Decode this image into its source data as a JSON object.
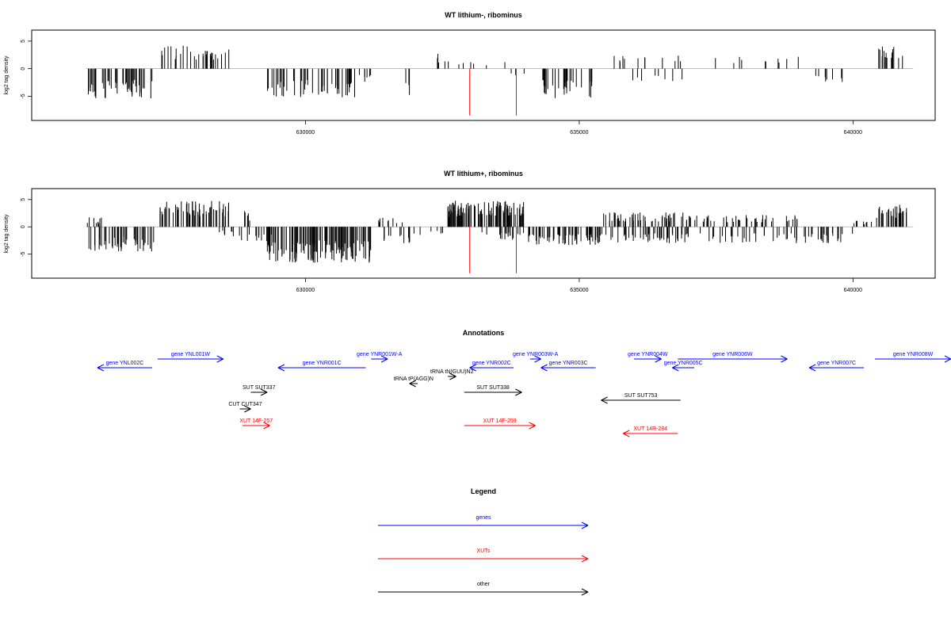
{
  "colors": {
    "gene": "#0000ff",
    "xut": "#ff0000",
    "other": "#000000",
    "highlight": "#ff0000"
  },
  "chart_data": [
    {
      "type": "bar",
      "title": "WT lithium-, ribominus",
      "ylabel": "log2 tag density",
      "xlim": [
        625000,
        641500
      ],
      "ylim": [
        -9.4,
        7.0
      ],
      "xticks": [
        {
          "value": 630000,
          "label": "630000"
        },
        {
          "value": 635000,
          "label": "635000"
        },
        {
          "value": 640000,
          "label": "640000"
        }
      ],
      "yticks": [
        {
          "value": 5,
          "label": "5"
        },
        {
          "value": 0,
          "label": "0"
        },
        {
          "value": -5,
          "label": "-5"
        }
      ],
      "highlight_positions": [
        633000,
        633850
      ],
      "highlight_value": -8.5,
      "series": [
        {
          "x": [
            626000,
            627200
          ],
          "y": -4.5,
          "density": 48
        },
        {
          "x": [
            627300,
            628600
          ],
          "y": 3.5,
          "density": 32
        },
        {
          "x": [
            629300,
            630900
          ],
          "y": -4.5,
          "density": 52
        },
        {
          "x": [
            630900,
            631200
          ],
          "y": -2.5,
          "density": 6
        },
        {
          "x": [
            631800,
            631900
          ],
          "y": -4.0,
          "density": 3
        },
        {
          "x": [
            632400,
            632700
          ],
          "y": 2.5,
          "density": 5
        },
        {
          "x": [
            632800,
            633700
          ],
          "y": 1.0,
          "density": 6
        },
        {
          "x": [
            633600,
            634000
          ],
          "y": -1.0,
          "density": 3
        },
        {
          "x": [
            634300,
            635300
          ],
          "y": -4.5,
          "density": 30
        },
        {
          "x": [
            635500,
            636900
          ],
          "y": 2.0,
          "density": 12
        },
        {
          "x": [
            635900,
            636900
          ],
          "y": -2.0,
          "density": 8
        },
        {
          "x": [
            637300,
            639000
          ],
          "y": 1.8,
          "density": 10
        },
        {
          "x": [
            639300,
            640200
          ],
          "y": -2.2,
          "density": 8
        },
        {
          "x": [
            640450,
            641000
          ],
          "y": 3.5,
          "density": 14
        }
      ]
    },
    {
      "type": "bar",
      "title": "WT lithium+, ribominus",
      "ylabel": "log2 tag density",
      "xlim": [
        625000,
        641500
      ],
      "ylim": [
        -9.4,
        7.0
      ],
      "xticks": [
        {
          "value": 630000,
          "label": "630000"
        },
        {
          "value": 635000,
          "label": "635000"
        },
        {
          "value": 640000,
          "label": "640000"
        }
      ],
      "yticks": [
        {
          "value": 5,
          "label": "5"
        },
        {
          "value": 0,
          "label": "0"
        },
        {
          "value": -5,
          "label": "-5"
        }
      ],
      "highlight_positions": [
        633000,
        633850
      ],
      "highlight_value": -8.5,
      "series": [
        {
          "x": [
            626000,
            626300
          ],
          "y": 1.5,
          "density": 8
        },
        {
          "x": [
            626000,
            627300
          ],
          "y": -3.8,
          "density": 45
        },
        {
          "x": [
            627300,
            628600
          ],
          "y": 4.0,
          "density": 60
        },
        {
          "x": [
            628300,
            628800
          ],
          "y": -1.5,
          "density": 8
        },
        {
          "x": [
            628800,
            629000
          ],
          "y": 2.5,
          "density": 6
        },
        {
          "x": [
            628800,
            629400
          ],
          "y": -3.0,
          "density": 14
        },
        {
          "x": [
            629300,
            631200
          ],
          "y": -5.5,
          "density": 120
        },
        {
          "x": [
            631200,
            631800
          ],
          "y": 1.5,
          "density": 10
        },
        {
          "x": [
            631400,
            632200
          ],
          "y": -2.5,
          "density": 12
        },
        {
          "x": [
            632200,
            632600
          ],
          "y": -1.2,
          "density": 5
        },
        {
          "x": [
            632600,
            634000
          ],
          "y": 4.0,
          "density": 110
        },
        {
          "x": [
            633200,
            634000
          ],
          "y": -2.0,
          "density": 20
        },
        {
          "x": [
            634000,
            635400
          ],
          "y": -2.8,
          "density": 60
        },
        {
          "x": [
            635400,
            637000
          ],
          "y": 2.2,
          "density": 55
        },
        {
          "x": [
            635400,
            637000
          ],
          "y": -2.5,
          "density": 50
        },
        {
          "x": [
            637000,
            639000
          ],
          "y": 1.8,
          "density": 45
        },
        {
          "x": [
            637200,
            640000
          ],
          "y": -2.5,
          "density": 55
        },
        {
          "x": [
            640000,
            640400
          ],
          "y": 1.0,
          "density": 8
        },
        {
          "x": [
            640400,
            641000
          ],
          "y": 3.5,
          "density": 30
        }
      ]
    }
  ],
  "annotations": {
    "title": "Annotations",
    "features": [
      {
        "label": "gene YNL002C",
        "color": "gene",
        "dir": "left",
        "x1": 626200,
        "x2": 627200,
        "row": 1
      },
      {
        "label": "gene YNL001W",
        "color": "gene",
        "dir": "right",
        "x1": 627300,
        "x2": 628500,
        "row": 0
      },
      {
        "label": "gene YNR001C",
        "color": "gene",
        "dir": "left",
        "x1": 629500,
        "x2": 631100,
        "row": 1
      },
      {
        "label": "gene YNR001W-A",
        "color": "gene",
        "dir": "right",
        "x1": 631200,
        "x2": 631500,
        "row": 0
      },
      {
        "label": "gene YNR002C",
        "color": "gene",
        "dir": "left",
        "x1": 633000,
        "x2": 633800,
        "row": 1
      },
      {
        "label": "gene YNR003W-A",
        "color": "gene",
        "dir": "right",
        "x1": 634100,
        "x2": 634300,
        "row": 0
      },
      {
        "label": "gene YNR003C",
        "color": "gene",
        "dir": "left",
        "x1": 634300,
        "x2": 635300,
        "row": 1
      },
      {
        "label": "gene YNR004W",
        "color": "gene",
        "dir": "right",
        "x1": 636000,
        "x2": 636500,
        "row": 0
      },
      {
        "label": "gene YNR005C",
        "color": "gene",
        "dir": "left",
        "x1": 636700,
        "x2": 637100,
        "row": 1
      },
      {
        "label": "gene YNR006W",
        "color": "gene",
        "dir": "right",
        "x1": 636800,
        "x2": 638800,
        "row": 0
      },
      {
        "label": "gene YNR007C",
        "color": "gene",
        "dir": "left",
        "x1": 639200,
        "x2": 640200,
        "row": 1
      },
      {
        "label": "gene YNR008W",
        "color": "gene",
        "dir": "right",
        "x1": 640400,
        "x2": 641800,
        "row": 0
      },
      {
        "label": "tRNA tN(GUU)N2",
        "color": "other",
        "dir": "right",
        "x1": 632600,
        "x2": 632750,
        "row": 2
      },
      {
        "label": "tRNA tP(AGG)N",
        "color": "other",
        "dir": "left",
        "x1": 631900,
        "x2": 632050,
        "row": 3
      },
      {
        "label": "SUT SUT337",
        "color": "other",
        "dir": "right",
        "x1": 629000,
        "x2": 629300,
        "row": 4
      },
      {
        "label": "SUT SUT338",
        "color": "other",
        "dir": "right",
        "x1": 632900,
        "x2": 633950,
        "row": 4
      },
      {
        "label": "SUT SUT753",
        "color": "other",
        "dir": "left",
        "x1": 635400,
        "x2": 636850,
        "row": 5
      },
      {
        "label": "CUT CUT347",
        "color": "other",
        "dir": "right",
        "x1": 628800,
        "x2": 629000,
        "row": 6
      },
      {
        "label": "XUT 14F-257",
        "color": "xut",
        "dir": "right",
        "x1": 628850,
        "x2": 629350,
        "row": 7
      },
      {
        "label": "XUT 14F-259",
        "color": "xut",
        "dir": "right",
        "x1": 632900,
        "x2": 634200,
        "row": 7
      },
      {
        "label": "XUT 14R-284",
        "color": "xut",
        "dir": "left",
        "x1": 635800,
        "x2": 636800,
        "row": 8
      }
    ]
  },
  "legend": {
    "title": "Legend",
    "items": [
      {
        "label": "genes",
        "color": "gene"
      },
      {
        "label": "XUTs",
        "color": "xut"
      },
      {
        "label": "other",
        "color": "other"
      }
    ]
  }
}
